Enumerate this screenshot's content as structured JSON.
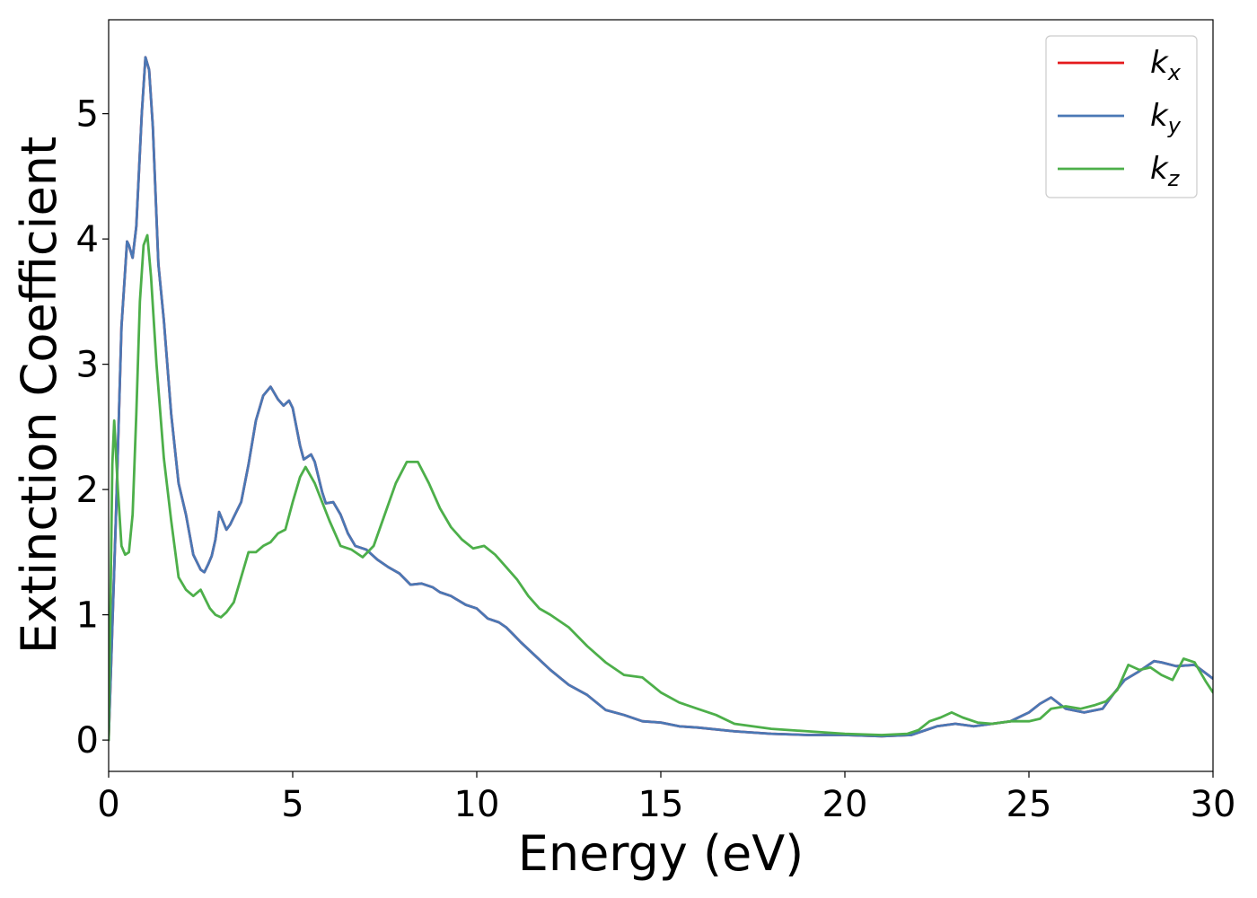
{
  "chart_data": {
    "type": "line",
    "xlabel": "Energy (eV)",
    "ylabel": "Extinction Coefficient",
    "xlim": [
      0,
      30
    ],
    "ylim": [
      -0.25,
      5.75
    ],
    "xticks": [
      0,
      5,
      10,
      15,
      20,
      25,
      30
    ],
    "yticks": [
      0,
      1,
      2,
      3,
      4,
      5
    ],
    "grid": false,
    "legend_position": "top-right",
    "series": [
      {
        "name": "k",
        "subscript": "x",
        "color": "#e41a1c",
        "x": [
          0,
          0.2,
          0.35,
          0.5,
          0.55,
          0.65,
          0.75,
          0.9,
          1.0,
          1.1,
          1.2,
          1.35,
          1.5,
          1.7,
          1.9,
          2.1,
          2.3,
          2.5,
          2.6,
          2.7,
          2.8,
          2.9,
          3.0,
          3.1,
          3.2,
          3.3,
          3.4,
          3.6,
          3.8,
          4.0,
          4.2,
          4.4,
          4.6,
          4.75,
          4.9,
          5.0,
          5.2,
          5.3,
          5.5,
          5.6,
          5.8,
          5.9,
          6.1,
          6.3,
          6.5,
          6.7,
          7.0,
          7.3,
          7.6,
          7.9,
          8.2,
          8.5,
          8.8,
          9.0,
          9.3,
          9.7,
          10.0,
          10.3,
          10.6,
          10.8,
          11.0,
          11.2,
          11.6,
          12.0,
          12.5,
          13.0,
          13.5,
          14.0,
          14.5,
          15.0,
          15.5,
          16.0,
          17.0,
          18.0,
          19.0,
          20.0,
          21.0,
          21.8,
          22.2,
          22.5,
          23.0,
          23.5,
          24.0,
          24.5,
          25.0,
          25.3,
          25.6,
          26.0,
          26.5,
          27.0,
          27.3,
          27.6,
          28.0,
          28.4,
          28.6,
          29.0,
          29.5,
          30.0
        ],
        "y": [
          0.0,
          1.8,
          3.3,
          3.98,
          3.95,
          3.85,
          4.1,
          5.0,
          5.45,
          5.35,
          4.9,
          3.8,
          3.35,
          2.6,
          2.05,
          1.8,
          1.48,
          1.36,
          1.34,
          1.4,
          1.47,
          1.6,
          1.82,
          1.75,
          1.68,
          1.72,
          1.78,
          1.9,
          2.2,
          2.55,
          2.75,
          2.82,
          2.72,
          2.67,
          2.71,
          2.65,
          2.35,
          2.24,
          2.28,
          2.22,
          1.98,
          1.89,
          1.9,
          1.8,
          1.65,
          1.55,
          1.52,
          1.44,
          1.38,
          1.33,
          1.24,
          1.25,
          1.22,
          1.18,
          1.15,
          1.08,
          1.05,
          0.97,
          0.94,
          0.9,
          0.84,
          0.78,
          0.67,
          0.56,
          0.44,
          0.36,
          0.24,
          0.2,
          0.15,
          0.14,
          0.11,
          0.1,
          0.07,
          0.05,
          0.04,
          0.04,
          0.03,
          0.04,
          0.08,
          0.11,
          0.13,
          0.11,
          0.13,
          0.15,
          0.22,
          0.29,
          0.34,
          0.25,
          0.22,
          0.25,
          0.37,
          0.48,
          0.55,
          0.63,
          0.62,
          0.59,
          0.6,
          0.49
        ]
      },
      {
        "name": "k",
        "subscript": "y",
        "color": "#4a78b5",
        "x": [
          0,
          0.2,
          0.35,
          0.5,
          0.55,
          0.65,
          0.75,
          0.9,
          1.0,
          1.1,
          1.2,
          1.35,
          1.5,
          1.7,
          1.9,
          2.1,
          2.3,
          2.5,
          2.6,
          2.7,
          2.8,
          2.9,
          3.0,
          3.1,
          3.2,
          3.3,
          3.4,
          3.6,
          3.8,
          4.0,
          4.2,
          4.4,
          4.6,
          4.75,
          4.9,
          5.0,
          5.2,
          5.3,
          5.5,
          5.6,
          5.8,
          5.9,
          6.1,
          6.3,
          6.5,
          6.7,
          7.0,
          7.3,
          7.6,
          7.9,
          8.2,
          8.5,
          8.8,
          9.0,
          9.3,
          9.7,
          10.0,
          10.3,
          10.6,
          10.8,
          11.0,
          11.2,
          11.6,
          12.0,
          12.5,
          13.0,
          13.5,
          14.0,
          14.5,
          15.0,
          15.5,
          16.0,
          17.0,
          18.0,
          19.0,
          20.0,
          21.0,
          21.8,
          22.2,
          22.5,
          23.0,
          23.5,
          24.0,
          24.5,
          25.0,
          25.3,
          25.6,
          26.0,
          26.5,
          27.0,
          27.3,
          27.6,
          28.0,
          28.4,
          28.6,
          29.0,
          29.5,
          30.0
        ],
        "y": [
          0.0,
          1.8,
          3.3,
          3.98,
          3.95,
          3.85,
          4.1,
          5.0,
          5.45,
          5.35,
          4.9,
          3.8,
          3.35,
          2.6,
          2.05,
          1.8,
          1.48,
          1.36,
          1.34,
          1.4,
          1.47,
          1.6,
          1.82,
          1.75,
          1.68,
          1.72,
          1.78,
          1.9,
          2.2,
          2.55,
          2.75,
          2.82,
          2.72,
          2.67,
          2.71,
          2.65,
          2.35,
          2.24,
          2.28,
          2.22,
          1.98,
          1.89,
          1.9,
          1.8,
          1.65,
          1.55,
          1.52,
          1.44,
          1.38,
          1.33,
          1.24,
          1.25,
          1.22,
          1.18,
          1.15,
          1.08,
          1.05,
          0.97,
          0.94,
          0.9,
          0.84,
          0.78,
          0.67,
          0.56,
          0.44,
          0.36,
          0.24,
          0.2,
          0.15,
          0.14,
          0.11,
          0.1,
          0.07,
          0.05,
          0.04,
          0.04,
          0.03,
          0.04,
          0.08,
          0.11,
          0.13,
          0.11,
          0.13,
          0.15,
          0.22,
          0.29,
          0.34,
          0.25,
          0.22,
          0.25,
          0.37,
          0.48,
          0.55,
          0.63,
          0.62,
          0.59,
          0.6,
          0.49
        ]
      },
      {
        "name": "k",
        "subscript": "z",
        "color": "#4daf4a",
        "x": [
          0,
          0.1,
          0.15,
          0.25,
          0.35,
          0.45,
          0.55,
          0.65,
          0.75,
          0.85,
          0.95,
          1.05,
          1.15,
          1.3,
          1.5,
          1.7,
          1.9,
          2.1,
          2.3,
          2.5,
          2.6,
          2.75,
          2.9,
          3.05,
          3.2,
          3.4,
          3.6,
          3.8,
          4.0,
          4.2,
          4.4,
          4.6,
          4.8,
          5.0,
          5.2,
          5.35,
          5.6,
          5.8,
          6.0,
          6.3,
          6.6,
          6.9,
          7.2,
          7.5,
          7.8,
          8.1,
          8.4,
          8.7,
          9.0,
          9.3,
          9.6,
          9.9,
          10.2,
          10.5,
          10.8,
          11.1,
          11.4,
          11.7,
          12.0,
          12.5,
          13.0,
          13.5,
          14.0,
          14.5,
          15.0,
          15.5,
          16.0,
          16.5,
          17.0,
          18.0,
          19.0,
          20.0,
          21.0,
          21.7,
          22.0,
          22.3,
          22.6,
          22.9,
          23.2,
          23.6,
          24.0,
          24.5,
          25.0,
          25.3,
          25.6,
          26.0,
          26.4,
          26.8,
          27.1,
          27.4,
          27.7,
          28.0,
          28.3,
          28.6,
          28.9,
          29.2,
          29.5,
          29.8,
          30.0
        ],
        "y": [
          0.0,
          2.2,
          2.55,
          2.0,
          1.55,
          1.48,
          1.5,
          1.8,
          2.6,
          3.5,
          3.95,
          4.03,
          3.7,
          3.0,
          2.25,
          1.75,
          1.3,
          1.2,
          1.15,
          1.2,
          1.14,
          1.05,
          1.0,
          0.98,
          1.02,
          1.1,
          1.3,
          1.5,
          1.5,
          1.55,
          1.58,
          1.65,
          1.68,
          1.9,
          2.1,
          2.18,
          2.05,
          1.9,
          1.75,
          1.55,
          1.52,
          1.46,
          1.55,
          1.8,
          2.05,
          2.22,
          2.22,
          2.05,
          1.85,
          1.7,
          1.6,
          1.53,
          1.55,
          1.48,
          1.38,
          1.28,
          1.15,
          1.05,
          1.0,
          0.9,
          0.75,
          0.62,
          0.52,
          0.5,
          0.38,
          0.3,
          0.25,
          0.2,
          0.13,
          0.09,
          0.07,
          0.05,
          0.04,
          0.05,
          0.08,
          0.15,
          0.18,
          0.22,
          0.18,
          0.14,
          0.13,
          0.15,
          0.15,
          0.17,
          0.25,
          0.27,
          0.25,
          0.28,
          0.31,
          0.4,
          0.6,
          0.56,
          0.58,
          0.52,
          0.48,
          0.65,
          0.62,
          0.47,
          0.38
        ]
      }
    ]
  }
}
